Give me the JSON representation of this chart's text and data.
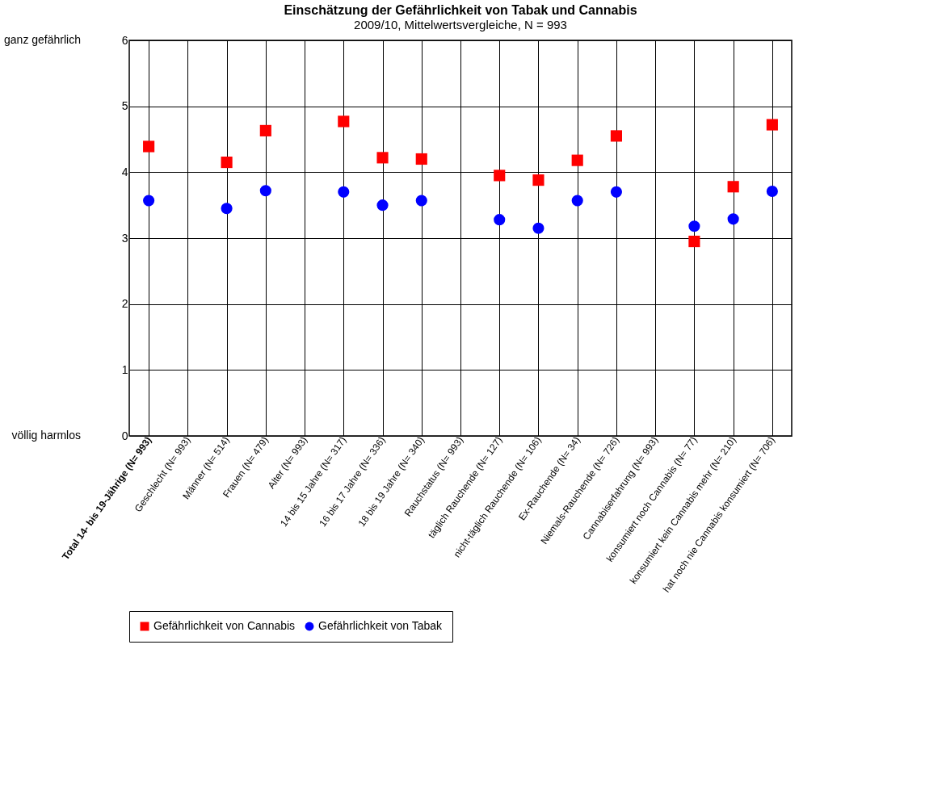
{
  "chart_data": {
    "type": "scatter",
    "title": "Einschätzung der Gefährlichkeit von Tabak und Cannabis",
    "subtitle": "2009/10, Mittelwertsvergleiche, N = 993",
    "categories": [
      "Total 14- bis 19-Jährige (N=  993)",
      "Geschlecht (N=  993)",
      "Männer (N=  514)",
      "Frauen (N=  479)",
      "Alter (N=  993)",
      "14 bis 15 Jahre (N=  317)",
      "16 bis 17 Jahre (N=  336)",
      "18 bis 19 Jahre (N=  340)",
      "Rauchstatus (N=  993)",
      "täglich Rauchende (N=  127)",
      "nicht-täglich Rauchende (N=  106)",
      "Ex-Rauchende (N=    34)",
      "Niemals-Rauchende (N=  726)",
      "Cannabiserfahrung (N=  993)",
      "konsumiert noch Cannabis (N=    77)",
      "konsumiert kein Cannabis mehr (N=  210)",
      "hat noch nie Cannabis konsumiert (N=  706)"
    ],
    "series": [
      {
        "name": "Gefährlichkeit von Cannabis",
        "color": "#ff0000",
        "marker": "square",
        "values": [
          4.39,
          null,
          4.15,
          4.63,
          null,
          4.77,
          4.22,
          4.2,
          null,
          3.95,
          3.88,
          4.18,
          4.55,
          null,
          2.95,
          3.78,
          4.72
        ]
      },
      {
        "name": "Gefährlichkeit von Tabak",
        "color": "#0000ff",
        "marker": "circle",
        "values": [
          3.57,
          null,
          3.45,
          3.72,
          null,
          3.7,
          3.5,
          3.57,
          null,
          3.28,
          3.15,
          3.57,
          3.7,
          null,
          3.18,
          3.29,
          3.71
        ]
      }
    ],
    "ylim": [
      0,
      6
    ],
    "yticks": [
      0,
      1,
      2,
      3,
      4,
      5,
      6
    ],
    "grid": true,
    "legend": "bottom",
    "annotations": [
      "ganz gefährlich",
      "völlig harmlos"
    ]
  }
}
